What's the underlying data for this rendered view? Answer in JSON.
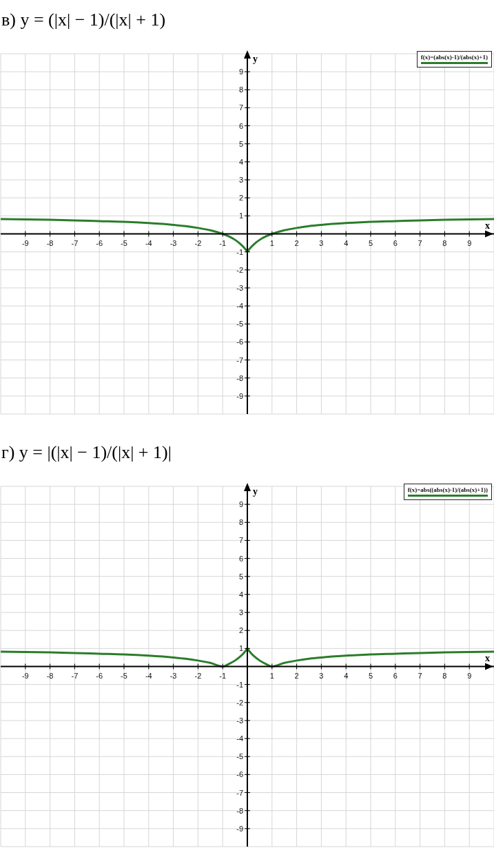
{
  "chart_data": [
    {
      "type": "line",
      "title": "в) y = (|x| − 1)/(|x| + 1)",
      "xlabel": "x",
      "ylabel": "y",
      "xlim": [
        -10,
        10
      ],
      "ylim": [
        -10,
        10
      ],
      "xticks": [
        -9,
        -8,
        -7,
        -6,
        -5,
        -4,
        -3,
        -2,
        -1,
        1,
        2,
        3,
        4,
        5,
        6,
        7,
        8,
        9
      ],
      "yticks": [
        -9,
        -8,
        -7,
        -6,
        -5,
        -4,
        -3,
        -2,
        -1,
        1,
        2,
        3,
        4,
        5,
        6,
        7,
        8,
        9
      ],
      "grid": true,
      "legend": "top right",
      "marker": "none",
      "line_style": "solid",
      "series": [
        {
          "name": "f(x)=(abs(x)-1)/(abs(x)+1)",
          "color": "#2a7d2a",
          "x": [
            -10,
            -9,
            -8,
            -7,
            -6,
            -5,
            -4,
            -3,
            -2.5,
            -2,
            -1.5,
            -1,
            -0.75,
            -0.5,
            -0.3,
            -0.15,
            -0.05,
            0,
            0.05,
            0.15,
            0.3,
            0.5,
            0.75,
            1,
            1.5,
            2,
            2.5,
            3,
            4,
            5,
            6,
            7,
            8,
            9,
            10
          ],
          "values": [
            0.82,
            0.8,
            0.78,
            0.75,
            0.71,
            0.67,
            0.6,
            0.5,
            0.43,
            0.33,
            0.2,
            0,
            -0.14,
            -0.33,
            -0.54,
            -0.74,
            -0.9,
            -1,
            -0.9,
            -0.74,
            -0.54,
            -0.33,
            -0.14,
            0,
            0.2,
            0.33,
            0.43,
            0.5,
            0.6,
            0.67,
            0.71,
            0.75,
            0.78,
            0.8,
            0.82
          ]
        }
      ]
    },
    {
      "type": "line",
      "title": "г) y = |(|x| − 1)/(|x| + 1)|",
      "xlabel": "x",
      "ylabel": "y",
      "xlim": [
        -10,
        10
      ],
      "ylim": [
        -10,
        10
      ],
      "xticks": [
        -9,
        -8,
        -7,
        -6,
        -5,
        -4,
        -3,
        -2,
        -1,
        1,
        2,
        3,
        4,
        5,
        6,
        7,
        8,
        9
      ],
      "yticks": [
        -9,
        -8,
        -7,
        -6,
        -5,
        -4,
        -3,
        -2,
        -1,
        1,
        2,
        3,
        4,
        5,
        6,
        7,
        8,
        9
      ],
      "grid": true,
      "legend": "top right",
      "marker": "none",
      "line_style": "solid",
      "series": [
        {
          "name": "f(x)=abs((abs(x)-1)/(abs(x)+1))",
          "color": "#2a7d2a",
          "x": [
            -10,
            -9,
            -8,
            -7,
            -6,
            -5,
            -4,
            -3,
            -2.5,
            -2,
            -1.5,
            -1,
            -0.75,
            -0.5,
            -0.3,
            -0.15,
            -0.05,
            0,
            0.05,
            0.15,
            0.3,
            0.5,
            0.75,
            1,
            1.5,
            2,
            2.5,
            3,
            4,
            5,
            6,
            7,
            8,
            9,
            10
          ],
          "values": [
            0.82,
            0.8,
            0.78,
            0.75,
            0.71,
            0.67,
            0.6,
            0.5,
            0.43,
            0.33,
            0.2,
            0,
            0.14,
            0.33,
            0.54,
            0.74,
            0.9,
            1,
            0.9,
            0.74,
            0.54,
            0.33,
            0.14,
            0,
            0.2,
            0.33,
            0.43,
            0.5,
            0.6,
            0.67,
            0.71,
            0.75,
            0.78,
            0.8,
            0.82
          ]
        }
      ]
    }
  ]
}
